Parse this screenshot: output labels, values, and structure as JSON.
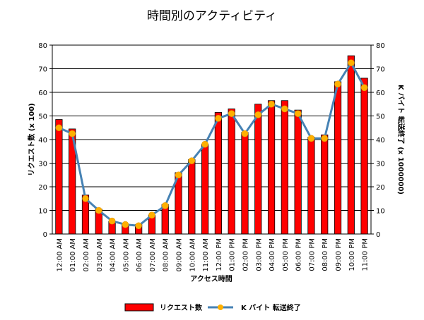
{
  "chart_data": {
    "type": "bar+line",
    "title": "時間別のアクティビティ",
    "xlabel": "アクセス時間",
    "ylabel_left": "リクエスト数 (x 100)",
    "ylabel_right": "K バイト 転送終了 (x 1000000)",
    "ylim_left": [
      0,
      80
    ],
    "ylim_right": [
      0,
      80
    ],
    "yticks": [
      0,
      10,
      20,
      30,
      40,
      50,
      60,
      70,
      80
    ],
    "grid": true,
    "legend_position": "bottom",
    "categories": [
      "12:00 AM",
      "01:00 AM",
      "02:00 AM",
      "03:00 AM",
      "04:00 AM",
      "05:00 AM",
      "06:00 AM",
      "07:00 AM",
      "08:00 AM",
      "09:00 AM",
      "10:00 AM",
      "11:00 AM",
      "12:00 PM",
      "01:00 PM",
      "02:00 PM",
      "03:00 PM",
      "04:00 PM",
      "05:00 PM",
      "06:00 PM",
      "07:00 PM",
      "08:00 PM",
      "09:00 PM",
      "10:00 PM",
      "11:00 PM"
    ],
    "series": [
      {
        "name": "リクエスト数",
        "kind": "bar",
        "axis": "left",
        "color": "#ff0000",
        "values": [
          48.5,
          44.5,
          16.5,
          10.5,
          5.5,
          4,
          4,
          8,
          12.5,
          26,
          31.5,
          38,
          51.5,
          53,
          43,
          55,
          56.5,
          56.5,
          52.5,
          41,
          42,
          64.5,
          75.5,
          66
        ]
      },
      {
        "name": "K バイト 転送終了",
        "kind": "line",
        "axis": "right",
        "color": "#4682b4",
        "marker_color": "#ffb000",
        "values": [
          45,
          42.5,
          15,
          10,
          5.5,
          4,
          3.5,
          8,
          12,
          25,
          31,
          38,
          49,
          51,
          42.5,
          50.5,
          55,
          53,
          51,
          40.5,
          40.5,
          63.5,
          72.5,
          62
        ]
      }
    ]
  }
}
